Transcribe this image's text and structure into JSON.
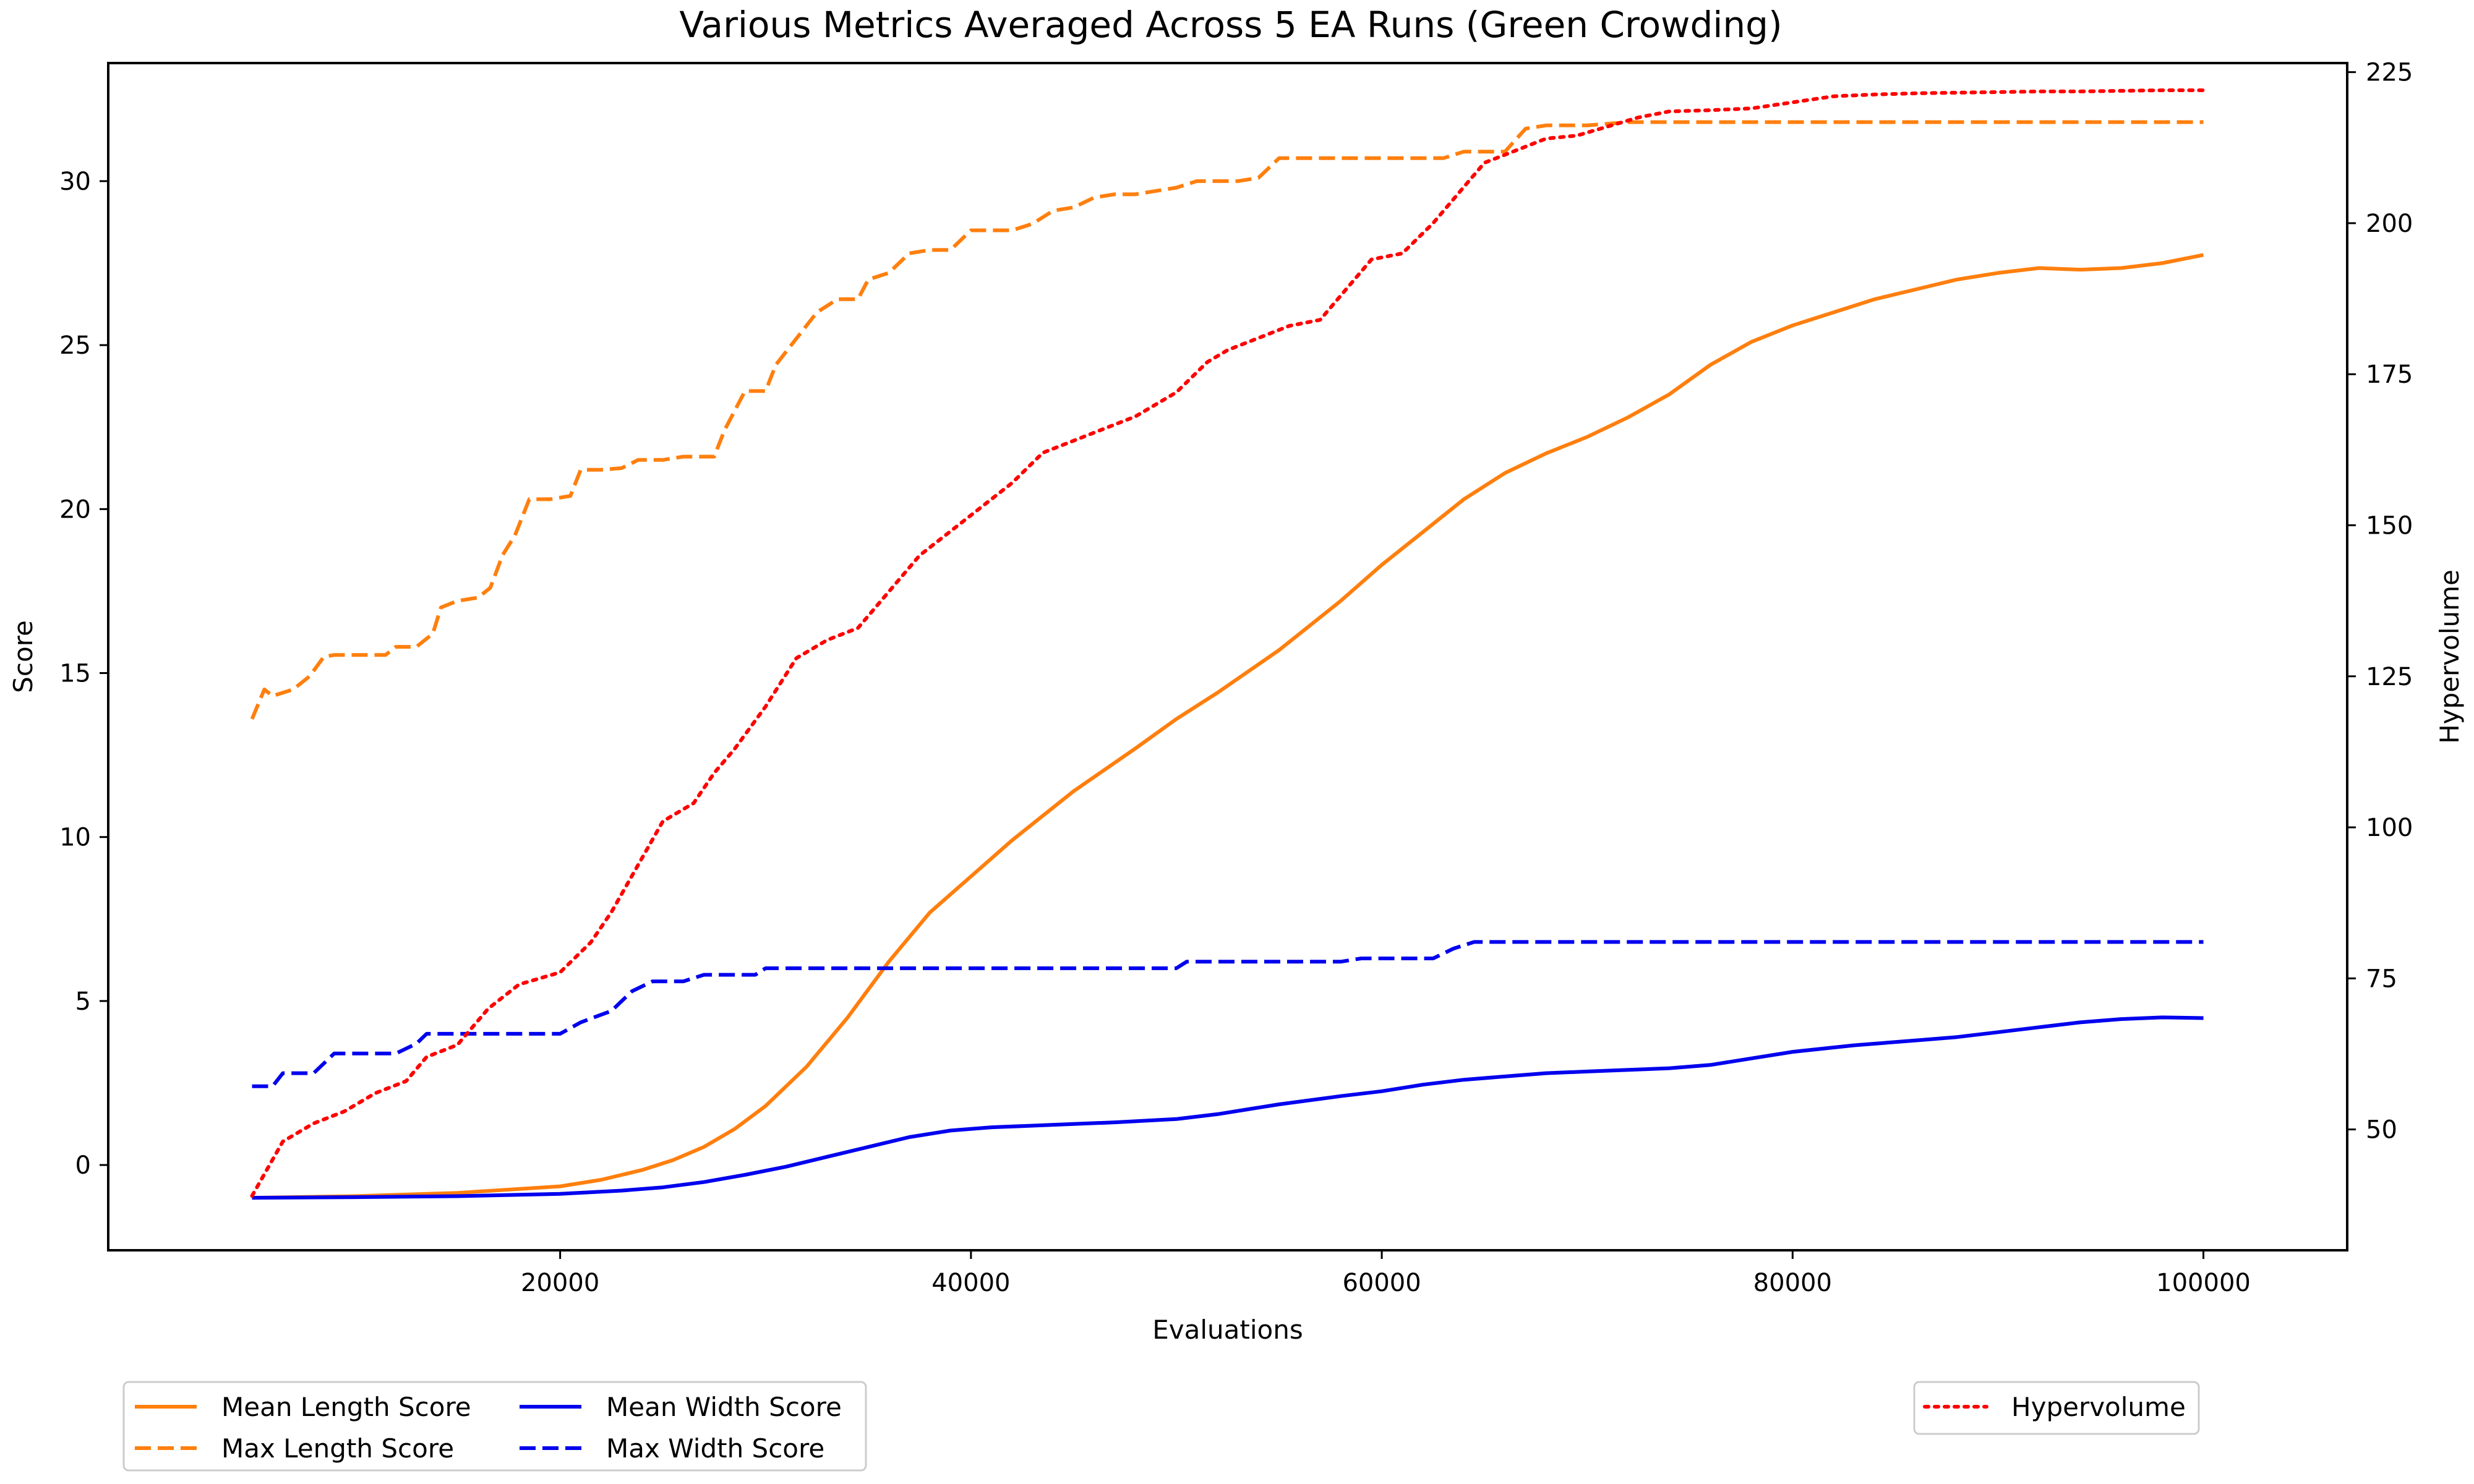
{
  "chart_data": {
    "type": "line",
    "title": "Various Metrics Averaged Across 5 EA Runs (Green Crowding)",
    "xlabel": "Evaluations",
    "ylabel": "Score",
    "y2label": "Hypervolume",
    "xlim": [
      -2000,
      107000
    ],
    "ylim": [
      -2.6,
      33.6
    ],
    "y2lim": [
      30,
      226.5
    ],
    "xticks": [
      20000,
      40000,
      60000,
      80000,
      100000
    ],
    "xtick_labels": [
      "20000",
      "40000",
      "60000",
      "80000",
      "100000"
    ],
    "yticks": [
      0,
      5,
      10,
      15,
      20,
      25,
      30
    ],
    "ytick_labels": [
      "0",
      "5",
      "10",
      "15",
      "20",
      "25",
      "30"
    ],
    "y2ticks": [
      50,
      75,
      100,
      125,
      150,
      175,
      200,
      225
    ],
    "y2tick_labels": [
      "50",
      "75",
      "100",
      "125",
      "150",
      "175",
      "200",
      "225"
    ],
    "grid": false,
    "legend_left_entries": [
      "Mean Length Score",
      "Max Length Score",
      "Mean Width Score",
      "Max Width Score"
    ],
    "legend_right_entries": [
      "Hypervolume"
    ],
    "legend_placement": "below plot, left and right",
    "series": [
      {
        "name": "Mean Length Score",
        "axis": "left",
        "color": "#ff7f0e",
        "style": "solid",
        "x": [
          5000,
          10000,
          15000,
          20000,
          22000,
          24000,
          25500,
          27000,
          28500,
          30000,
          32000,
          34000,
          36000,
          38000,
          40000,
          42000,
          45000,
          48000,
          50000,
          52000,
          55000,
          58000,
          60000,
          62000,
          64000,
          66000,
          68000,
          70000,
          72000,
          74000,
          76000,
          78000,
          80000,
          82000,
          84000,
          86000,
          88000,
          90000,
          92000,
          94000,
          96000,
          98000,
          100000
        ],
        "values": [
          -1.0,
          -0.95,
          -0.85,
          -0.65,
          -0.45,
          -0.15,
          0.15,
          0.55,
          1.1,
          1.8,
          3.0,
          4.5,
          6.2,
          7.7,
          8.8,
          9.9,
          11.4,
          12.7,
          13.6,
          14.4,
          15.7,
          17.2,
          18.3,
          19.3,
          20.3,
          21.1,
          21.7,
          22.2,
          22.8,
          23.5,
          24.4,
          25.1,
          25.6,
          26.0,
          26.4,
          26.7,
          27.0,
          27.2,
          27.35,
          27.3,
          27.35,
          27.5,
          27.75
        ]
      },
      {
        "name": "Max Length Score",
        "axis": "left",
        "color": "#ff7f0e",
        "style": "dashed",
        "x": [
          5000,
          5600,
          6000,
          7000,
          7800,
          8500,
          9000,
          10000,
          11500,
          12000,
          13000,
          13800,
          14200,
          15000,
          16000,
          16600,
          17200,
          17800,
          18500,
          19500,
          20500,
          21000,
          22000,
          23000,
          23800,
          24200,
          25000,
          26000,
          26500,
          27500,
          28000,
          29000,
          30000,
          30500,
          31500,
          32500,
          33500,
          34500,
          35000,
          36000,
          37000,
          38000,
          39000,
          40000,
          42000,
          43000,
          44000,
          45000,
          46000,
          47000,
          48000,
          50000,
          51000,
          52000,
          53000,
          54000,
          55000,
          56000,
          57000,
          58000,
          59000,
          60000,
          61000,
          62000,
          63000,
          64000,
          65000,
          66000,
          67000,
          68000,
          70000,
          72000,
          73000,
          75000,
          80000,
          85000,
          90000,
          95000,
          100000
        ],
        "values": [
          13.6,
          14.5,
          14.3,
          14.5,
          14.9,
          15.5,
          15.55,
          15.55,
          15.55,
          15.8,
          15.8,
          16.2,
          17.0,
          17.2,
          17.3,
          17.6,
          18.6,
          19.2,
          20.3,
          20.3,
          20.4,
          21.2,
          21.2,
          21.25,
          21.5,
          21.5,
          21.5,
          21.6,
          21.6,
          21.6,
          22.4,
          23.6,
          23.6,
          24.4,
          25.2,
          26.0,
          26.4,
          26.4,
          27.0,
          27.2,
          27.8,
          27.9,
          27.9,
          28.5,
          28.5,
          28.7,
          29.1,
          29.2,
          29.5,
          29.6,
          29.6,
          29.8,
          30.0,
          30.0,
          30.0,
          30.1,
          30.7,
          30.7,
          30.7,
          30.7,
          30.7,
          30.7,
          30.7,
          30.7,
          30.7,
          30.9,
          30.9,
          30.9,
          31.6,
          31.7,
          31.7,
          31.8,
          31.8,
          31.8,
          31.8,
          31.8,
          31.8,
          31.8,
          31.8
        ]
      },
      {
        "name": "Mean Width Score",
        "axis": "left",
        "color": "#0000ee",
        "style": "solid",
        "x": [
          5000,
          10000,
          15000,
          20000,
          23000,
          25000,
          27000,
          29000,
          31000,
          33000,
          35000,
          37000,
          39000,
          41000,
          43000,
          45000,
          47000,
          50000,
          52000,
          55000,
          58000,
          60000,
          62000,
          64000,
          66000,
          68000,
          70000,
          72000,
          74000,
          76000,
          78000,
          80000,
          83000,
          86000,
          88000,
          90000,
          92000,
          94000,
          96000,
          98000,
          100000
        ],
        "values": [
          -1.0,
          -0.98,
          -0.95,
          -0.88,
          -0.78,
          -0.68,
          -0.52,
          -0.3,
          -0.05,
          0.25,
          0.55,
          0.85,
          1.05,
          1.15,
          1.2,
          1.25,
          1.3,
          1.4,
          1.55,
          1.85,
          2.1,
          2.25,
          2.45,
          2.6,
          2.7,
          2.8,
          2.85,
          2.9,
          2.95,
          3.05,
          3.25,
          3.45,
          3.65,
          3.8,
          3.9,
          4.05,
          4.2,
          4.35,
          4.45,
          4.5,
          4.48
        ]
      },
      {
        "name": "Max Width Score",
        "axis": "left",
        "color": "#0000ee",
        "style": "dashed",
        "x": [
          5000,
          6000,
          6500,
          8000,
          9000,
          10000,
          12000,
          13000,
          13500,
          18000,
          20000,
          21000,
          22500,
          23500,
          24500,
          26000,
          27000,
          27500,
          29500,
          30000,
          50000,
          50500,
          58000,
          59000,
          62500,
          63500,
          64500,
          70000,
          80000,
          90000,
          100000
        ],
        "values": [
          2.4,
          2.4,
          2.8,
          2.8,
          3.4,
          3.4,
          3.4,
          3.7,
          4.0,
          4.0,
          4.0,
          4.35,
          4.7,
          5.3,
          5.6,
          5.6,
          5.8,
          5.8,
          5.8,
          6.0,
          6.0,
          6.2,
          6.2,
          6.3,
          6.3,
          6.6,
          6.8,
          6.8,
          6.8,
          6.8,
          6.8
        ]
      },
      {
        "name": "Hypervolume",
        "axis": "right",
        "color": "#ff0000",
        "style": "dotted",
        "x": [
          5000,
          6500,
          8000,
          9500,
          11000,
          12500,
          13500,
          15000,
          16500,
          18000,
          20000,
          21500,
          22500,
          24000,
          25000,
          26500,
          27500,
          28500,
          30000,
          31500,
          33000,
          34500,
          36000,
          37500,
          39000,
          40500,
          42000,
          43500,
          45000,
          46500,
          48000,
          50000,
          51500,
          52500,
          54000,
          55500,
          57000,
          58500,
          59500,
          61000,
          62500,
          63500,
          65000,
          66500,
          68000,
          69500,
          71000,
          72500,
          74000,
          76000,
          78000,
          80000,
          82000,
          84000,
          86000,
          88000,
          90000,
          92000,
          94000,
          96000,
          98000,
          100000
        ],
        "values": [
          39,
          48,
          51,
          53,
          56,
          58,
          62,
          64,
          70,
          74,
          76,
          81,
          86,
          95,
          101,
          104,
          109,
          113,
          120,
          128,
          131,
          133,
          139,
          145,
          149,
          153,
          157,
          162,
          164,
          166,
          168,
          172,
          177,
          179,
          181,
          183,
          184,
          190,
          194,
          195,
          200,
          204,
          210,
          212,
          214,
          214.5,
          216,
          217.5,
          218.5,
          218.7,
          219,
          220,
          221,
          221.3,
          221.5,
          221.6,
          221.7,
          221.8,
          221.8,
          221.9,
          222,
          222
        ]
      }
    ]
  }
}
